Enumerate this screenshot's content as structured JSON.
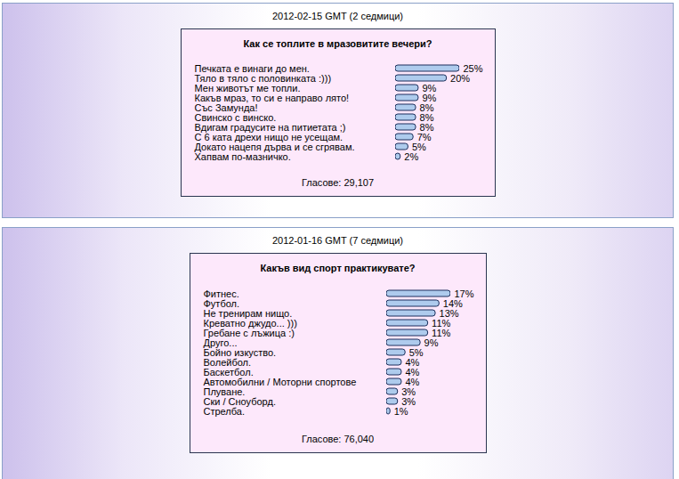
{
  "chart_data": [
    {
      "type": "bar",
      "orientation": "horizontal",
      "subtitle": "2012-02-15 GMT (2 седмици)",
      "title": "Как се топлите в мразовитите вечери?",
      "categories": [
        "Печката е винаги до мен.",
        "Тяло в тяло с половинката :)))",
        "Мен животът ме топли.",
        "Какъв мраз, то си е направо лято!",
        "Със Замунда!",
        "Свинско с винско.",
        "Вдигам градусите на питиетата ;)",
        "С 6 ката дрехи нищо не усещам.",
        "Докато нацепя дърва и се сгрявам.",
        "Хапвам по-мазничко."
      ],
      "values": [
        25,
        20,
        9,
        9,
        8,
        8,
        8,
        7,
        5,
        2
      ],
      "value_labels": [
        "25%",
        "20%",
        "9%",
        "9%",
        "8%",
        "8%",
        "8%",
        "7%",
        "5%",
        "2%"
      ],
      "data_labels": true,
      "color": "#aecbed",
      "xlim": [
        0,
        25
      ],
      "tick_labels": false,
      "annotations": [
        "Гласове: 29,107"
      ]
    },
    {
      "type": "bar",
      "orientation": "horizontal",
      "subtitle": "2012-01-16 GMT (7 седмици)",
      "title": "Какъв вид спорт практикувате?",
      "categories": [
        "Фитнес.",
        "Футбол.",
        "Не тренирам нищо.",
        "Креватно джудо... )))",
        "Гребане с лъжица :)",
        "Друго...",
        "Бойно изкуство.",
        "Волейбол.",
        "Баскетбол.",
        "Автомобилни / Моторни спортове",
        "Плуване.",
        "Ски / Сноуборд.",
        "Стрелба."
      ],
      "values": [
        17,
        14,
        13,
        11,
        11,
        9,
        5,
        4,
        4,
        4,
        3,
        3,
        1
      ],
      "value_labels": [
        "17%",
        "14%",
        "13%",
        "11%",
        "11%",
        "9%",
        "5%",
        "4%",
        "4%",
        "4%",
        "3%",
        "3%",
        "1%"
      ],
      "data_labels": true,
      "color": "#aecbed",
      "xlim": [
        0,
        17
      ],
      "tick_labels": false,
      "annotations": [
        "Гласове: 76,040"
      ]
    }
  ]
}
